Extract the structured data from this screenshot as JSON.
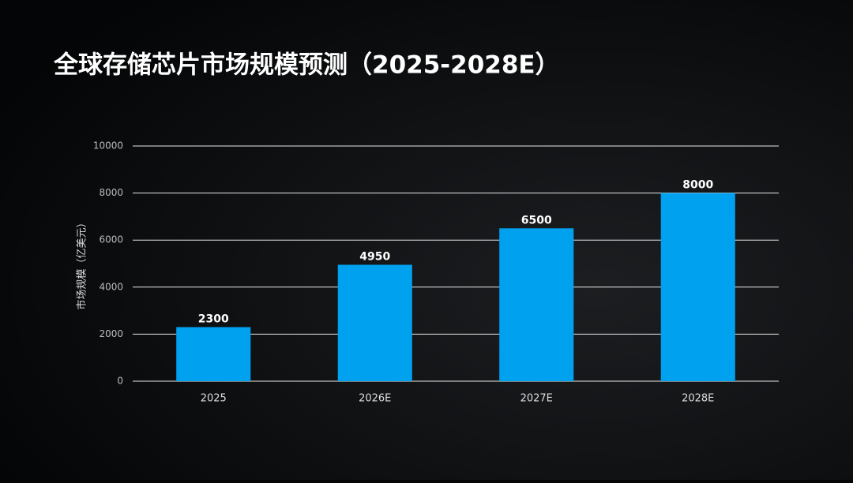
{
  "chart_data": {
    "type": "bar",
    "title": "全球存储芯片市场规模预测（2025-2028E）",
    "y_label": "市场规模（亿美元）",
    "categories": [
      "2025",
      "2026E",
      "2027E",
      "2028E"
    ],
    "values": [
      2300,
      4950,
      6500,
      8000
    ],
    "color": "#00a2f0",
    "ylim": [
      0,
      10000
    ],
    "yticks": [
      0,
      2000,
      4000,
      6000,
      8000,
      10000
    ],
    "grid": true
  }
}
